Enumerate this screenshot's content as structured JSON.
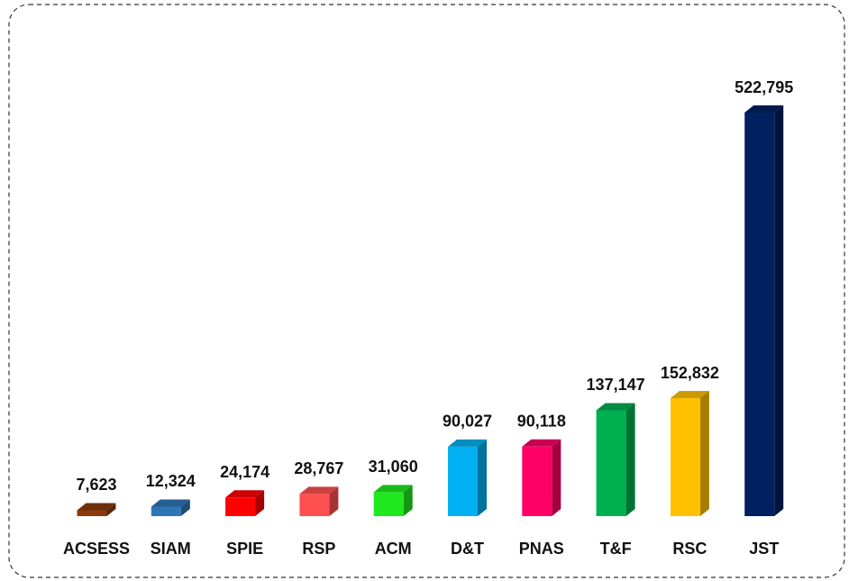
{
  "chart_data": {
    "type": "bar3d",
    "categories": [
      "ACSESS",
      "SIAM",
      "SPIE",
      "RSP",
      "ACM",
      "D&T",
      "PNAS",
      "T&F",
      "RSC",
      "JST"
    ],
    "values": [
      7623,
      12324,
      24174,
      28767,
      31060,
      90027,
      90118,
      137147,
      152832,
      522795
    ],
    "value_labels": [
      "7,623",
      "12,324",
      "24,174",
      "28,767",
      "31,060",
      "90,027",
      "90,118",
      "137,147",
      "152,832",
      "522,795"
    ],
    "colors": [
      "#8b3a0e",
      "#2e75b6",
      "#ff0000",
      "#ff5050",
      "#1ee81e",
      "#00b0f0",
      "#ff0066",
      "#00b050",
      "#ffc000",
      "#002060"
    ]
  }
}
